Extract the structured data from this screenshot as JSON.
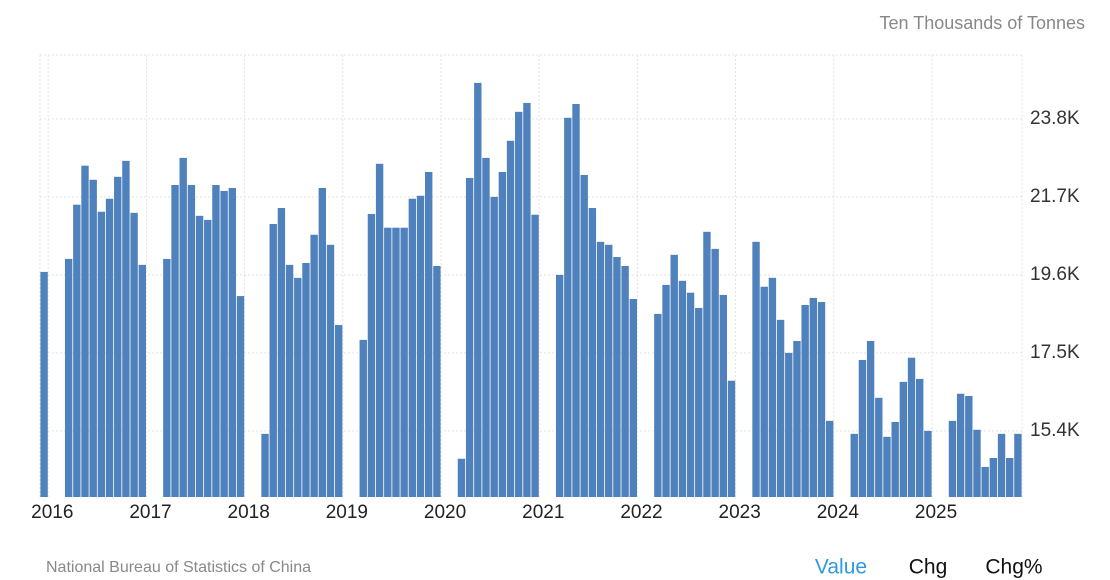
{
  "chart_data": {
    "type": "bar",
    "unit": "Ten Thousands of Tonnes",
    "source": "National Bureau of Statistics of China",
    "color": "#4f81bd",
    "categories": [
      null,
      "2016",
      null,
      null,
      null,
      null,
      null,
      null,
      null,
      null,
      null,
      null,
      null,
      "2017",
      null,
      null,
      null,
      null,
      null,
      null,
      null,
      null,
      null,
      null,
      null,
      "2018",
      null,
      null,
      null,
      null,
      null,
      null,
      null,
      null,
      null,
      null,
      null,
      "2019",
      null,
      null,
      null,
      null,
      null,
      null,
      null,
      null,
      null,
      null,
      null,
      "2020",
      null,
      null,
      null,
      null,
      null,
      null,
      null,
      null,
      null,
      null,
      null,
      "2021",
      null,
      null,
      null,
      null,
      null,
      null,
      null,
      null,
      null,
      null,
      null,
      "2022",
      null,
      null,
      null,
      null,
      null,
      null,
      null,
      null,
      null,
      null,
      null,
      "2023",
      null,
      null,
      null,
      null,
      null,
      null,
      null,
      null,
      null,
      null,
      null,
      "2024",
      null,
      null,
      null,
      null,
      null,
      null,
      null,
      null,
      null,
      null,
      null,
      "2025",
      null,
      null,
      null,
      null,
      null,
      null,
      null,
      null,
      null,
      null
    ],
    "values": [
      19680,
      null,
      null,
      20030,
      21490,
      22540,
      22160,
      21300,
      21650,
      22240,
      22670,
      21270,
      19870,
      null,
      null,
      20030,
      22020,
      22750,
      22020,
      21190,
      21080,
      22020,
      21860,
      21940,
      19030,
      null,
      null,
      15320,
      20970,
      21400,
      19870,
      19520,
      19920,
      20680,
      21940,
      20410,
      18250,
      null,
      null,
      17850,
      21240,
      22590,
      20870,
      20870,
      20870,
      21650,
      21730,
      22370,
      19840,
      null,
      null,
      14650,
      22210,
      24770,
      22750,
      21700,
      22370,
      23210,
      23990,
      24230,
      21220,
      null,
      null,
      19600,
      23830,
      24200,
      22290,
      21400,
      20490,
      20410,
      20080,
      19840,
      18950,
      null,
      null,
      18550,
      19330,
      20140,
      19440,
      19120,
      18710,
      20760,
      20300,
      19060,
      16750,
      null,
      null,
      20490,
      19280,
      19520,
      18390,
      17500,
      17820,
      18790,
      18980,
      18870,
      15670,
      null,
      null,
      15320,
      17310,
      17820,
      16290,
      15240,
      15640,
      16720,
      17370,
      16800,
      15400,
      null,
      null,
      15670,
      16400,
      16340,
      15430,
      14430,
      14670,
      15320,
      14670,
      15320
    ],
    "ylim": [
      13620,
      25520
    ],
    "yticks": [
      {
        "value": 15400,
        "label": "15.4K"
      },
      {
        "value": 17500,
        "label": "17.5K"
      },
      {
        "value": 19600,
        "label": "19.6K"
      },
      {
        "value": 21700,
        "label": "21.7K"
      },
      {
        "value": 23800,
        "label": "23.8K"
      }
    ],
    "grid": true
  },
  "tabs": [
    "Value",
    "Chg",
    "Chg%"
  ]
}
